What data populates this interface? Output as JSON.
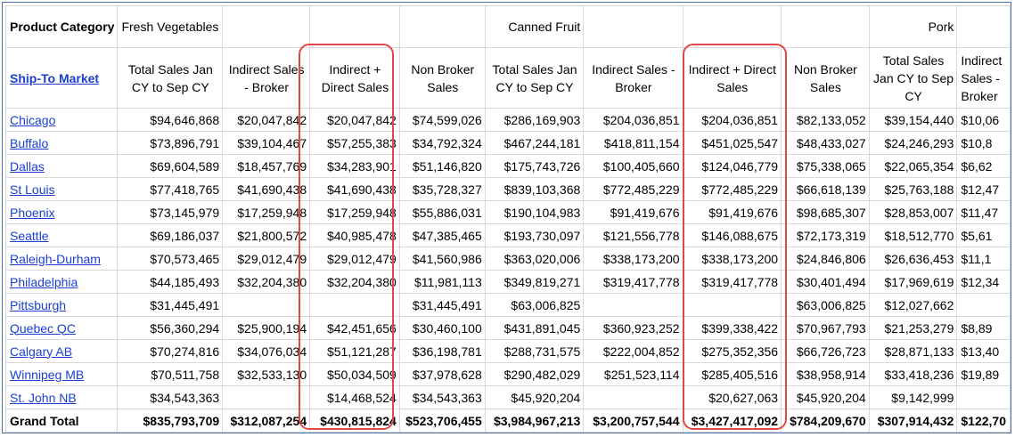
{
  "header": {
    "product_category_label": "Product Category",
    "ship_to_label": "Ship-To Market",
    "categories": [
      "Fresh Vegetables",
      "Canned Fruit",
      "Pork"
    ],
    "columns": [
      "Total Sales Jan CY to Sep CY",
      "Indirect Sales - Broker",
      "Indirect + Direct Sales",
      "Non Broker Sales",
      "Total Sales Jan CY to Sep CY",
      "Indirect Sales - Broker",
      "Indirect + Direct Sales",
      "Non Broker Sales",
      "Total Sales Jan CY to Sep CY",
      "Indirect Sales - Broker"
    ]
  },
  "rows": [
    {
      "market": "Chicago",
      "values": [
        "$94,646,868",
        "$20,047,842",
        "$20,047,842",
        "$74,599,026",
        "$286,169,903",
        "$204,036,851",
        "$204,036,851",
        "$82,133,052",
        "$39,154,440",
        "$10,06"
      ]
    },
    {
      "market": "Buffalo",
      "values": [
        "$73,896,791",
        "$39,104,467",
        "$57,255,383",
        "$34,792,324",
        "$467,244,181",
        "$418,811,154",
        "$451,025,547",
        "$48,433,027",
        "$24,246,293",
        "$10,8"
      ]
    },
    {
      "market": "Dallas",
      "values": [
        "$69,604,589",
        "$18,457,769",
        "$34,283,901",
        "$51,146,820",
        "$175,743,726",
        "$100,405,660",
        "$124,046,779",
        "$75,338,065",
        "$22,065,354",
        "$6,62"
      ]
    },
    {
      "market": "St Louis",
      "values": [
        "$77,418,765",
        "$41,690,438",
        "$41,690,438",
        "$35,728,327",
        "$839,103,368",
        "$772,485,229",
        "$772,485,229",
        "$66,618,139",
        "$25,763,188",
        "$12,47"
      ]
    },
    {
      "market": "Phoenix",
      "values": [
        "$73,145,979",
        "$17,259,948",
        "$17,259,948",
        "$55,886,031",
        "$190,104,983",
        "$91,419,676",
        "$91,419,676",
        "$98,685,307",
        "$28,853,007",
        "$11,47"
      ]
    },
    {
      "market": "Seattle",
      "values": [
        "$69,186,037",
        "$21,800,572",
        "$40,985,478",
        "$47,385,465",
        "$193,730,097",
        "$121,556,778",
        "$146,088,675",
        "$72,173,319",
        "$18,512,770",
        "$5,61"
      ]
    },
    {
      "market": "Raleigh-Durham",
      "values": [
        "$70,573,465",
        "$29,012,479",
        "$29,012,479",
        "$41,560,986",
        "$363,020,006",
        "$338,173,200",
        "$338,173,200",
        "$24,846,806",
        "$26,636,453",
        "$11,1"
      ]
    },
    {
      "market": "Philadelphia",
      "values": [
        "$44,185,493",
        "$32,204,380",
        "$32,204,380",
        "$11,981,113",
        "$349,819,271",
        "$319,417,778",
        "$319,417,778",
        "$30,401,494",
        "$17,969,619",
        "$12,34"
      ]
    },
    {
      "market": "Pittsburgh",
      "values": [
        "$31,445,491",
        "",
        "",
        "$31,445,491",
        "$63,006,825",
        "",
        "",
        "$63,006,825",
        "$12,027,662",
        ""
      ]
    },
    {
      "market": "Quebec QC",
      "values": [
        "$56,360,294",
        "$25,900,194",
        "$42,451,656",
        "$30,460,100",
        "$431,891,045",
        "$360,923,252",
        "$399,338,422",
        "$70,967,793",
        "$21,253,279",
        "$8,89"
      ]
    },
    {
      "market": "Calgary AB",
      "values": [
        "$70,274,816",
        "$34,076,034",
        "$51,121,287",
        "$36,198,781",
        "$288,731,575",
        "$222,004,852",
        "$275,352,356",
        "$66,726,723",
        "$28,871,133",
        "$13,40"
      ]
    },
    {
      "market": "Winnipeg MB",
      "values": [
        "$70,511,758",
        "$32,533,130",
        "$50,034,509",
        "$37,978,628",
        "$290,482,029",
        "$251,523,114",
        "$285,405,516",
        "$38,958,914",
        "$33,418,236",
        "$19,89"
      ]
    },
    {
      "market": "St. John NB",
      "values": [
        "$34,543,363",
        "",
        "$14,468,524",
        "$34,543,363",
        "$45,920,204",
        "",
        "$20,627,063",
        "$45,920,204",
        "$9,142,999",
        ""
      ]
    }
  ],
  "grand_total": {
    "label": "Grand Total",
    "values": [
      "$835,793,709",
      "$312,087,254",
      "$430,815,824",
      "$523,706,455",
      "$3,984,967,213",
      "$3,200,757,544",
      "$3,427,417,092",
      "$784,209,670",
      "$307,914,432",
      "$122,70"
    ]
  },
  "colors": {
    "link": "#1a3fd1",
    "highlight": "#e04848",
    "grid": "#d9d9d9",
    "frame": "#4a6fa5"
  }
}
